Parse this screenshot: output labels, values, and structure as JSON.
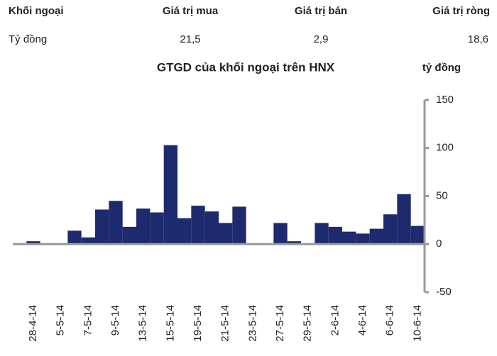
{
  "table": {
    "header": [
      "Khối ngoại",
      "Giá trị mua",
      "Giá trị bán",
      "Giá trị ròng"
    ],
    "rows": [
      [
        "Tỷ đồng",
        "21,5",
        "2,9",
        "18,6"
      ]
    ]
  },
  "chart_data": {
    "type": "bar",
    "title": "GTGD của khối ngoại trên HNX",
    "y_axis_label": "tỷ đồng",
    "categories": [
      null,
      "28-4-14",
      null,
      "5-5-14",
      null,
      "7-5-14",
      null,
      "9-5-14",
      null,
      "13-5-14",
      null,
      "15-5-14",
      null,
      "19-5-14",
      null,
      "21-5-14",
      null,
      "23-5-14",
      null,
      "27-5-14",
      null,
      "29-5-14",
      null,
      "2-6-14",
      null,
      "4-6-14",
      null,
      "6-6-14",
      null,
      "10-6-14"
    ],
    "values": [
      0,
      3,
      0,
      0,
      14,
      7,
      36,
      45,
      18,
      37,
      33,
      103,
      27,
      40,
      34,
      22,
      39,
      0,
      0,
      22,
      3,
      0,
      22,
      18,
      13,
      11,
      16,
      31,
      52,
      19
    ],
    "color": "#1d2a6e",
    "ylim": [
      -50,
      150
    ],
    "yticks": [
      -50,
      0,
      50,
      100,
      150
    ],
    "y_axis_position": "right"
  }
}
